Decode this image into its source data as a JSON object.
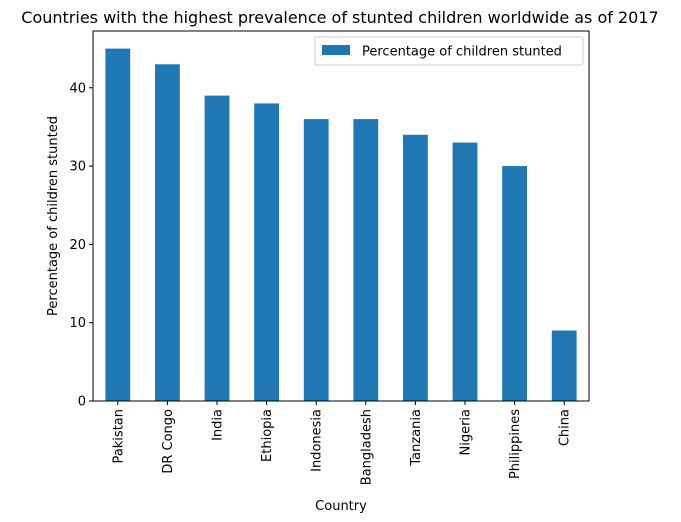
{
  "chart_data": {
    "type": "bar",
    "title": "Countries with the highest prevalence of stunted children worldwide as of 2017",
    "xlabel": "Country",
    "ylabel": "Percentage of children stunted",
    "categories": [
      "Pakistan",
      "DR Congo",
      "India",
      "Ethiopia",
      "Indonesia",
      "Bangladesh",
      "Tanzania",
      "Nigeria",
      "Philippines",
      "China"
    ],
    "series": [
      {
        "name": "Percentage of children stunted",
        "values": [
          45,
          43,
          39,
          38,
          36,
          36,
          34,
          33,
          30,
          9
        ],
        "color": "#1f77b4"
      }
    ],
    "yticks": [
      0,
      10,
      20,
      30,
      40
    ],
    "ylim": [
      0,
      47.25
    ],
    "grid": false,
    "legend_position": "top-right"
  }
}
